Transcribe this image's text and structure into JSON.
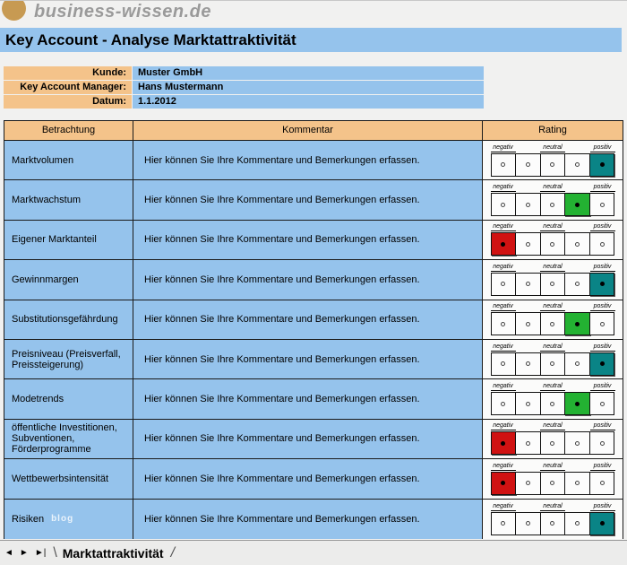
{
  "logo": {
    "text": "business-wissen.de"
  },
  "title": "Key Account - Analyse Marktattraktivität",
  "fields": [
    {
      "label": "Kunde:",
      "value": "Muster GmbH"
    },
    {
      "label": "Key Account Manager:",
      "value": "Hans Mustermann"
    },
    {
      "label": "Datum:",
      "value": "1.1.2012"
    }
  ],
  "table": {
    "headers": [
      "Betrachtung",
      "Kommentar",
      "Rating"
    ],
    "rating_scale_labels": [
      "negativ",
      "neutral",
      "positiv"
    ],
    "rows": [
      {
        "betrachtung": "Marktvolumen",
        "kommentar": "Hier können Sie Ihre Kommentare und Bemerkungen erfassen.",
        "rating": 5,
        "watermark": ""
      },
      {
        "betrachtung": "Marktwachstum",
        "kommentar": "Hier können Sie Ihre Kommentare und Bemerkungen erfassen.",
        "rating": 4,
        "watermark": ""
      },
      {
        "betrachtung": "Eigener Marktanteil",
        "kommentar": "Hier können Sie Ihre Kommentare und Bemerkungen erfassen.",
        "rating": 1,
        "watermark": ""
      },
      {
        "betrachtung": "Gewinnmargen",
        "kommentar": "Hier können Sie Ihre Kommentare und Bemerkungen erfassen.",
        "rating": 5,
        "watermark": ""
      },
      {
        "betrachtung": "Substitutionsgefährdung",
        "kommentar": "Hier können Sie Ihre Kommentare und Bemerkungen erfassen.",
        "rating": 4,
        "watermark": ""
      },
      {
        "betrachtung": "Preisniveau (Preisverfall, Preissteigerung)",
        "kommentar": "Hier können Sie Ihre Kommentare und Bemerkungen erfassen.",
        "rating": 5,
        "watermark": ""
      },
      {
        "betrachtung": "Modetrends",
        "kommentar": "Hier können Sie Ihre Kommentare und Bemerkungen erfassen.",
        "rating": 4,
        "watermark": ""
      },
      {
        "betrachtung": "öffentliche Investitionen, Subventionen, Förderprogramme",
        "kommentar": "Hier können Sie Ihre Kommentare und Bemerkungen erfassen.",
        "rating": 1,
        "watermark": ""
      },
      {
        "betrachtung": "Wettbewerbsintensität",
        "kommentar": "Hier können Sie Ihre Kommentare und Bemerkungen erfassen.",
        "rating": 1,
        "watermark": ""
      },
      {
        "betrachtung": "Risiken",
        "kommentar": "Hier können Sie Ihre Kommentare und Bemerkungen erfassen.",
        "rating": 5,
        "watermark": "blog"
      }
    ]
  },
  "rating_colors": {
    "1": "#d01212",
    "4": "#23b232",
    "5": "#0a8486"
  },
  "sheet_bar": {
    "tab": "Marktattraktivität",
    "nav": [
      {
        "name": "scroll-left-icon",
        "glyph": "◄"
      },
      {
        "name": "scroll-right-icon",
        "glyph": "►"
      },
      {
        "name": "scroll-last-icon",
        "glyph": "►|"
      }
    ]
  },
  "colors": {
    "accent_blue": "#95c3ec",
    "accent_tan": "#f4c38a",
    "logo_gold": "#c79a52"
  }
}
